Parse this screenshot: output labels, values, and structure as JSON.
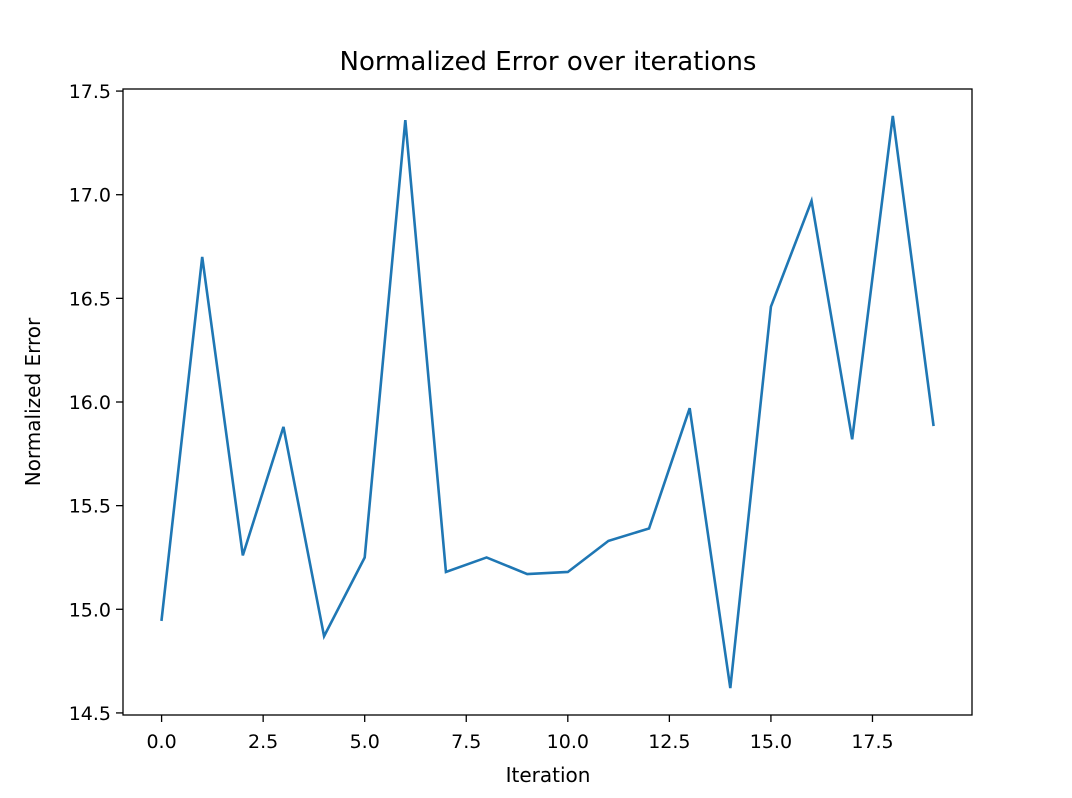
{
  "chart_data": {
    "type": "line",
    "title": "Normalized Error over iterations",
    "xlabel": "Iteration",
    "ylabel": "Normalized Error",
    "xlim": [
      -0.95,
      19.95
    ],
    "ylim": [
      14.49,
      17.51
    ],
    "xticks": [
      0,
      2.5,
      5,
      7.5,
      10,
      12.5,
      15,
      17.5
    ],
    "xtick_labels": [
      "0.0",
      "2.5",
      "5.0",
      "7.5",
      "10.0",
      "12.5",
      "15.0",
      "17.5"
    ],
    "yticks": [
      14.5,
      15.0,
      15.5,
      16.0,
      16.5,
      17.0,
      17.5
    ],
    "ytick_labels": [
      "14.5",
      "15.0",
      "15.5",
      "16.0",
      "16.5",
      "17.0",
      "17.5"
    ],
    "grid": false,
    "series": [
      {
        "color": "#1f77b4",
        "x": [
          0,
          1,
          2,
          3,
          4,
          5,
          6,
          7,
          8,
          9,
          10,
          11,
          12,
          13,
          14,
          15,
          16,
          17,
          18,
          19
        ],
        "values": [
          14.95,
          16.7,
          15.26,
          15.88,
          14.87,
          15.25,
          17.36,
          15.18,
          15.25,
          15.17,
          15.18,
          15.33,
          15.39,
          15.97,
          14.62,
          16.46,
          16.97,
          15.82,
          17.38,
          15.89
        ]
      }
    ]
  }
}
